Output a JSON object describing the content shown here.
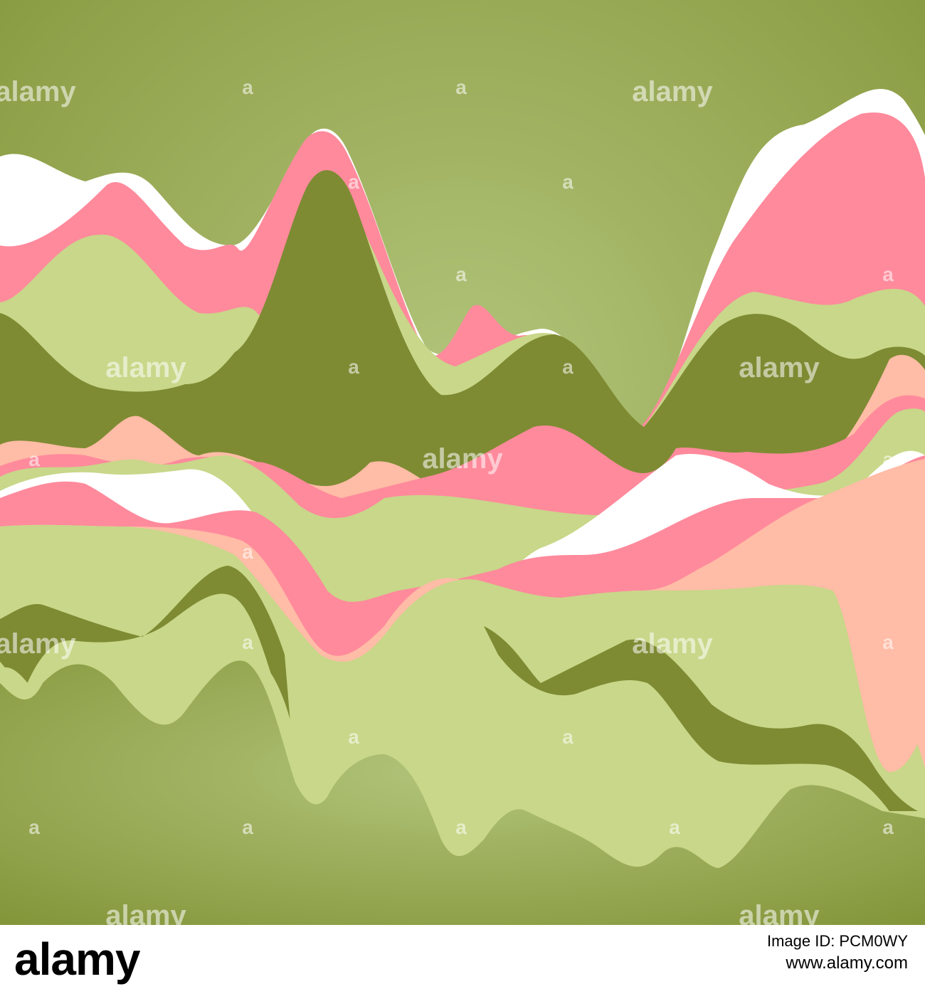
{
  "colors": {
    "background_center": "#b2c47a",
    "background_edge": "#84963a",
    "olive": "#7e8b33",
    "light_green": "#c8d789",
    "pink": "#ff8a9c",
    "peach": "#ffbca6",
    "white": "#ffffff"
  },
  "watermark": {
    "text": "alamy",
    "mark": "a"
  },
  "footer": {
    "brand": "alamy",
    "image_id": "Image ID: PCM0WY",
    "url": "www.alamy.com"
  }
}
